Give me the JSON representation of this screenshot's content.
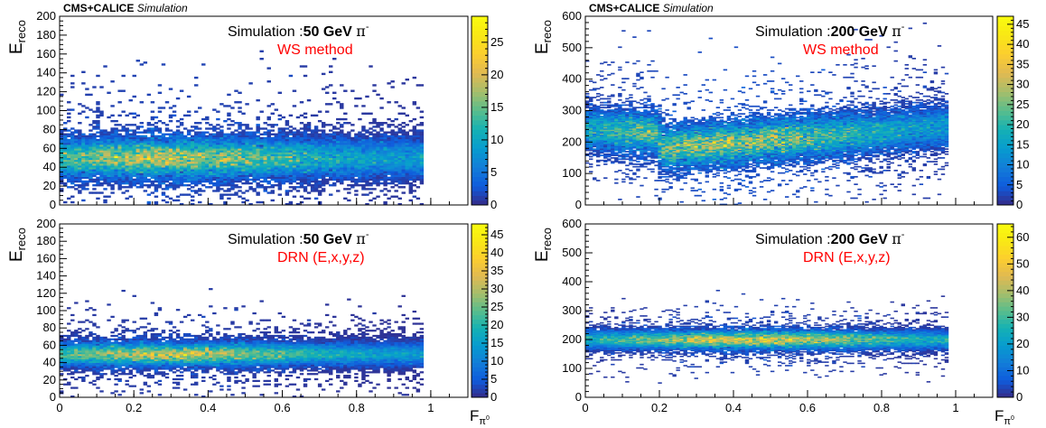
{
  "chart_data": [
    {
      "type": "heatmap",
      "position": "top-left",
      "header": {
        "experiment": "CMS+CALICE",
        "tag": "Simulation"
      },
      "annotation": {
        "prefix": "Simulation :",
        "energy": "50 GeV",
        "particle": "π",
        "charge": "-",
        "method": "WS method"
      },
      "xlabel": {
        "base": "F",
        "sub": "π",
        "subsup": "0"
      },
      "ylabel": {
        "base": "E",
        "sub": "reco"
      },
      "xlim": [
        0,
        1.1
      ],
      "ylim": [
        0,
        200
      ],
      "xticks": [
        0,
        0.2,
        0.4,
        0.6,
        0.8,
        1
      ],
      "yticks": [
        0,
        20,
        40,
        60,
        80,
        100,
        120,
        140,
        160,
        180,
        200
      ],
      "zlim": [
        0,
        29
      ],
      "zticks": [
        0,
        5,
        10,
        15,
        20,
        25
      ],
      "colormap": "parula",
      "distribution": {
        "x_range": [
          0,
          0.98
        ],
        "y_center": 50,
        "y_spread": 11,
        "peak_x": 0.3,
        "peak_y": 47
      }
    },
    {
      "type": "heatmap",
      "position": "top-right",
      "header": {
        "experiment": "CMS+CALICE",
        "tag": "Simulation"
      },
      "annotation": {
        "prefix": "Simulation :",
        "energy": "200 GeV",
        "particle": "π",
        "charge": "-",
        "method": "WS method"
      },
      "xlabel": {
        "base": "F",
        "sub": "π",
        "subsup": "0"
      },
      "ylabel": {
        "base": "E",
        "sub": "reco"
      },
      "xlim": [
        0,
        1.1
      ],
      "ylim": [
        0,
        600
      ],
      "xticks": [
        0,
        0.2,
        0.4,
        0.6,
        0.8,
        1
      ],
      "yticks": [
        0,
        100,
        200,
        300,
        400,
        500,
        600
      ],
      "zlim": [
        0,
        47
      ],
      "zticks": [
        0,
        5,
        10,
        15,
        20,
        25,
        30,
        35,
        40,
        45
      ],
      "colormap": "parula",
      "distribution": {
        "x_range": [
          0,
          0.98
        ],
        "y_center": 205,
        "y_spread": 35,
        "peak_x": 0.4,
        "peak_y": 195
      }
    },
    {
      "type": "heatmap",
      "position": "bottom-left",
      "annotation": {
        "prefix": "Simulation :",
        "energy": "50 GeV",
        "particle": "π",
        "charge": "-",
        "method": "DRN (E,x,y,z)"
      },
      "xlabel": {
        "base": "F",
        "sub": "π",
        "subsup": "0"
      },
      "ylabel": {
        "base": "E",
        "sub": "reco"
      },
      "xlim": [
        0,
        1.1
      ],
      "ylim": [
        0,
        200
      ],
      "xticks": [
        0,
        0.2,
        0.4,
        0.6,
        0.8,
        1
      ],
      "yticks": [
        0,
        20,
        40,
        60,
        80,
        100,
        120,
        140,
        160,
        180,
        200
      ],
      "zlim": [
        0,
        48
      ],
      "zticks": [
        0,
        5,
        10,
        15,
        20,
        25,
        30,
        35,
        40,
        45
      ],
      "colormap": "parula",
      "distribution": {
        "x_range": [
          0,
          0.98
        ],
        "y_center": 50,
        "y_spread": 7,
        "peak_x": 0.3,
        "peak_y": 50
      }
    },
    {
      "type": "heatmap",
      "position": "bottom-right",
      "annotation": {
        "prefix": "Simulation :",
        "energy": "200 GeV",
        "particle": "π",
        "charge": "-",
        "method": "DRN (E,x,y,z)"
      },
      "xlabel": {
        "base": "F",
        "sub": "π",
        "subsup": "0"
      },
      "ylabel": {
        "base": "E",
        "sub": "reco"
      },
      "xlim": [
        0,
        1.1
      ],
      "ylim": [
        0,
        600
      ],
      "xticks": [
        0,
        0.2,
        0.4,
        0.6,
        0.8,
        1
      ],
      "yticks": [
        0,
        100,
        200,
        300,
        400,
        500,
        600
      ],
      "zlim": [
        0,
        65
      ],
      "zticks": [
        0,
        10,
        20,
        30,
        40,
        50,
        60
      ],
      "colormap": "parula",
      "distribution": {
        "x_range": [
          0,
          0.98
        ],
        "y_center": 200,
        "y_spread": 17,
        "peak_x": 0.45,
        "peak_y": 200
      }
    }
  ]
}
